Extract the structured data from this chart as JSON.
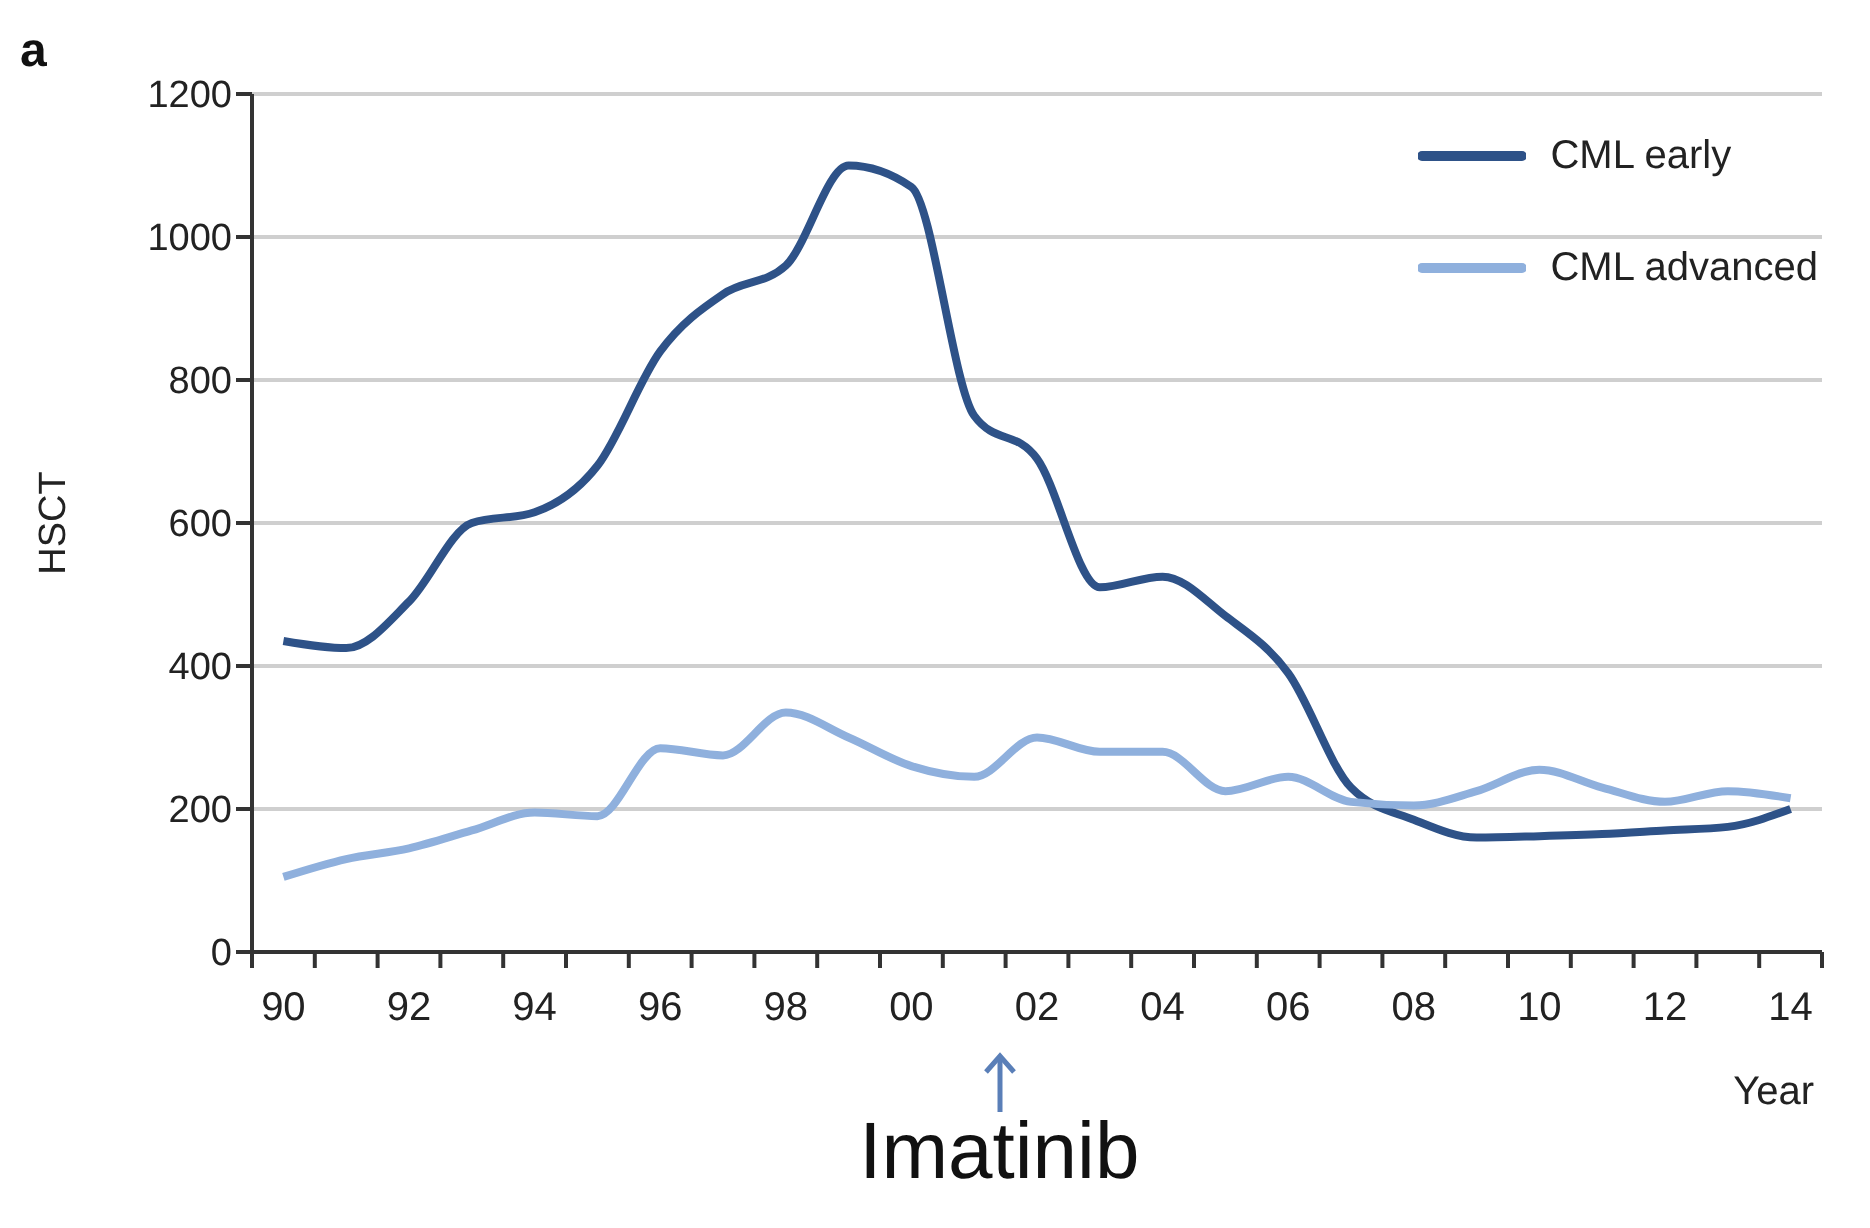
{
  "chart_data": {
    "type": "line",
    "ylabel": "HSCT",
    "xlabel": "Year",
    "annotations": [
      "a",
      "Imatinib"
    ],
    "categories": [
      "90",
      null,
      "92",
      null,
      "94",
      null,
      "96",
      null,
      "98",
      null,
      "00",
      null,
      "02",
      null,
      "04",
      null,
      "06",
      null,
      "08",
      null,
      "10",
      null,
      "12",
      null,
      "14"
    ],
    "series": [
      {
        "name": "CML early",
        "color": "#2e5288",
        "values": [
          435,
          425,
          490,
          600,
          615,
          680,
          840,
          920,
          960,
          1100,
          1070,
          750,
          690,
          510,
          525,
          470,
          390,
          230,
          185,
          160,
          162,
          165,
          170,
          175,
          200
        ]
      },
      {
        "name": "CML advanced",
        "color": "#8fb0dd",
        "values": [
          105,
          130,
          145,
          170,
          195,
          190,
          285,
          275,
          335,
          300,
          260,
          245,
          300,
          280,
          280,
          225,
          245,
          210,
          205,
          225,
          255,
          230,
          210,
          225,
          215
        ]
      }
    ],
    "ylim": [
      0,
      1200
    ],
    "yticks": [
      0,
      200,
      400,
      600,
      800,
      1000,
      1200
    ],
    "grid": "y",
    "legend": "top right",
    "marker": "none",
    "line_style": "solid"
  }
}
